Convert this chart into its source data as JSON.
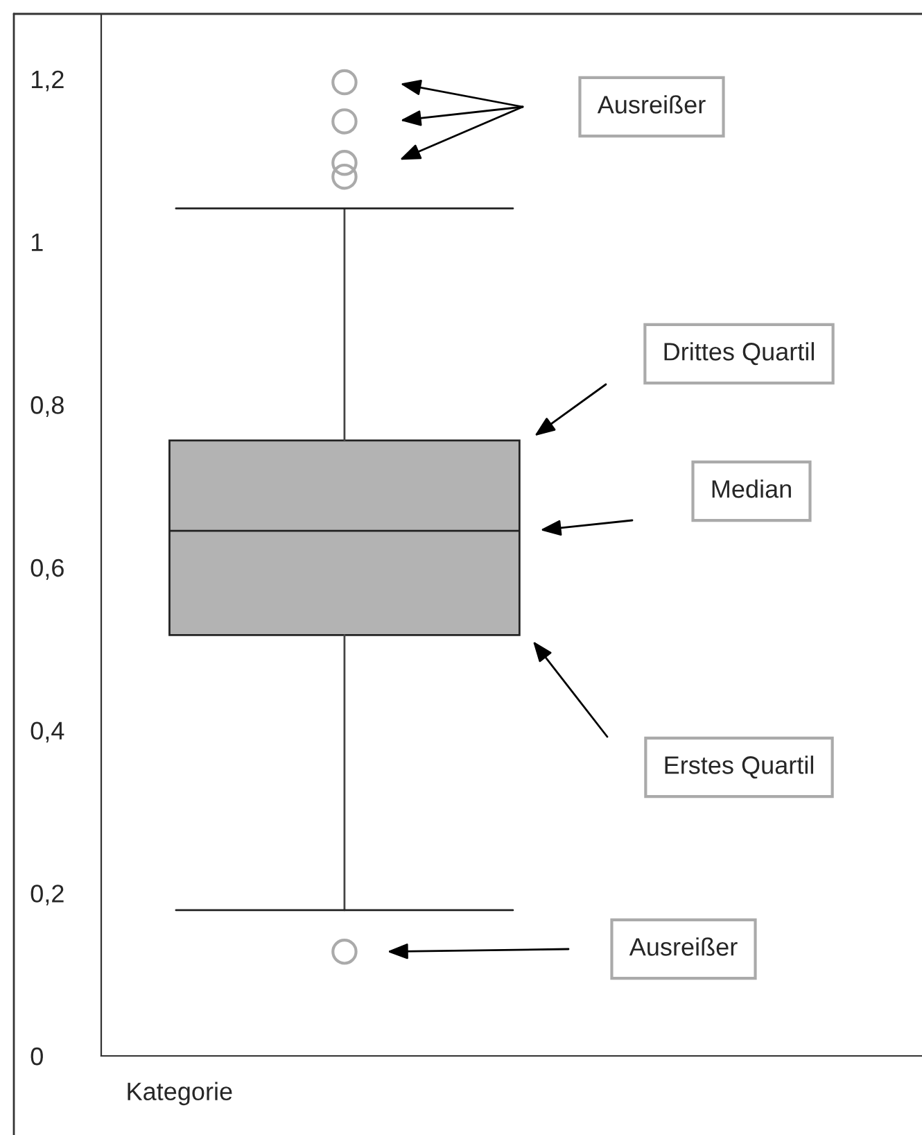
{
  "chart_data": {
    "type": "box",
    "categories": [
      null
    ],
    "xlabel": "Kategorie",
    "boxes": [
      {
        "low": 0.179,
        "q1": 0.517,
        "median": 0.645,
        "q3": 0.756,
        "high": 1.041,
        "outliers": [
          1.196,
          1.148,
          1.097,
          1.08,
          0.128
        ]
      }
    ],
    "color": "#b3b3b3",
    "ylim": [
      0,
      1.28
    ],
    "yticks": [
      0,
      {
        "value": 0.2,
        "label": "0,2"
      },
      {
        "value": 0.4,
        "label": "0,4"
      },
      {
        "value": 0.6,
        "label": "0,6"
      },
      {
        "value": 0.8,
        "label": "0,8"
      },
      1,
      {
        "value": 1.2,
        "label": "1,2"
      }
    ],
    "annotations": [
      "Ausreißer",
      "Drittes Quartil",
      "Median",
      "Erstes Quartil",
      "Ausreißer"
    ],
    "grid": false,
    "legend": false
  }
}
